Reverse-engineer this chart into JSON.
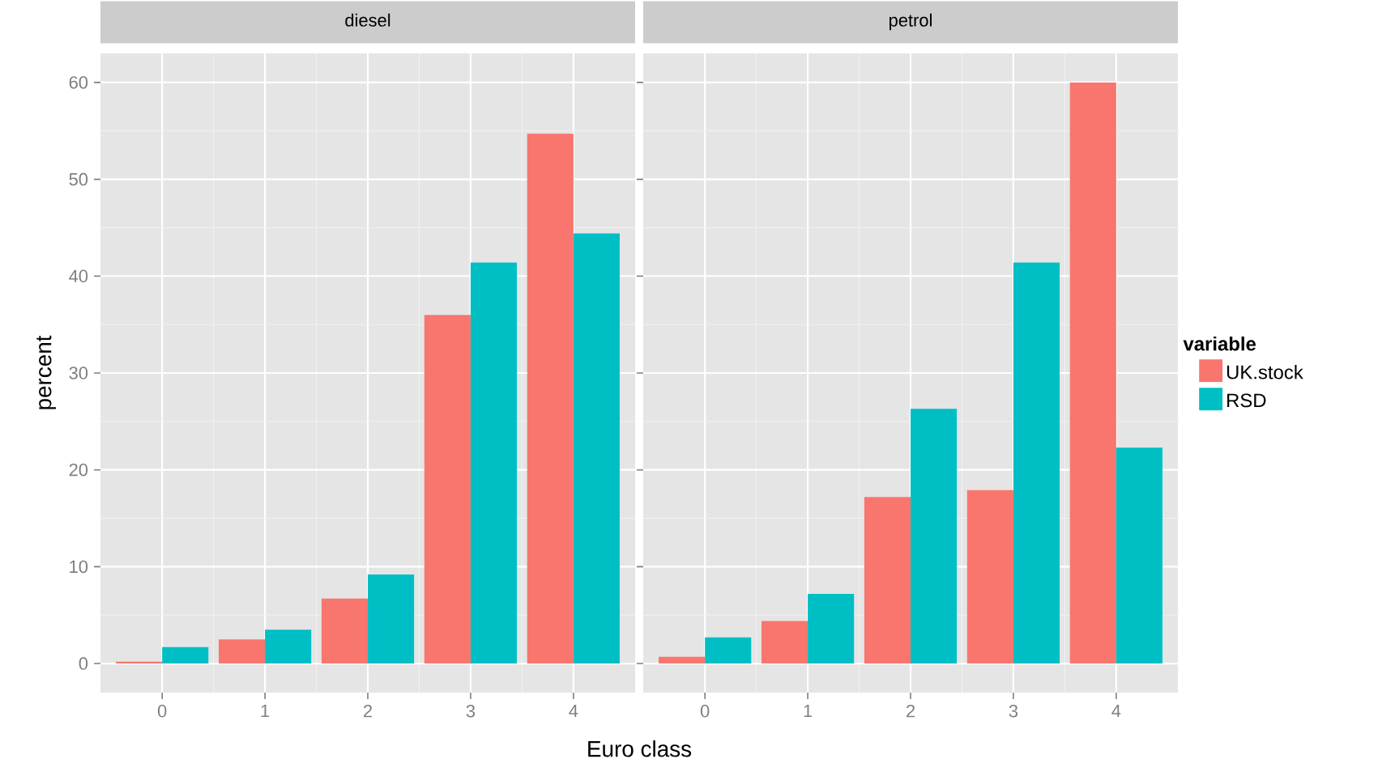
{
  "chart_data": [
    {
      "type": "bar",
      "title": "diesel",
      "xlabel": "Euro class",
      "ylabel": "percent",
      "categories": [
        "0",
        "1",
        "2",
        "3",
        "4"
      ],
      "series": [
        {
          "color": "#f8766d",
          "values": [
            0.2,
            2.5,
            6.7,
            36.0,
            54.7
          ]
        },
        {
          "color": "#00bfc4",
          "values": [
            1.7,
            3.5,
            9.2,
            41.4,
            44.4
          ]
        }
      ],
      "ylim": [
        -3,
        63
      ],
      "yticks": [
        0,
        10,
        20,
        30,
        40,
        50,
        60
      ],
      "grid": true
    },
    {
      "type": "bar",
      "title": "petrol",
      "categories": [
        "0",
        "1",
        "2",
        "3",
        "4"
      ],
      "series": [
        {
          "name": "UK.stock",
          "color": "#f8766d",
          "values": [
            0.7,
            4.4,
            17.2,
            17.9,
            60.0
          ]
        },
        {
          "name": "RSD",
          "color": "#00bfc4",
          "values": [
            2.7,
            7.2,
            26.3,
            41.4,
            22.3
          ]
        }
      ],
      "ylim": [
        -3,
        63
      ],
      "yticks": [
        0,
        10,
        20,
        30,
        40,
        50,
        60
      ],
      "grid": true,
      "tick_labels": "x",
      "legend": "right",
      "legend_title": "variable"
    }
  ]
}
